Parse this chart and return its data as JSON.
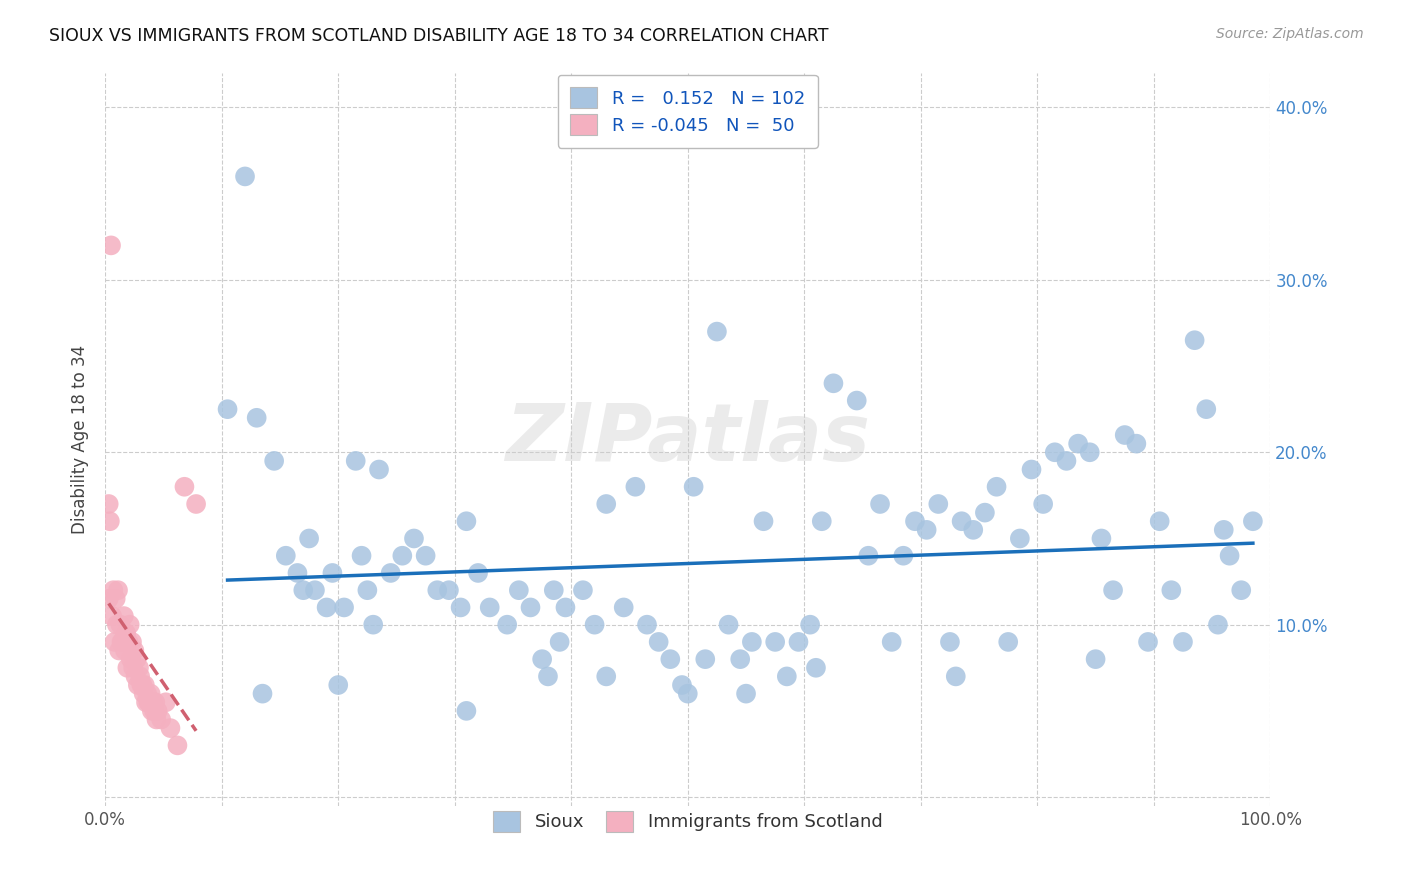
{
  "title": "SIOUX VS IMMIGRANTS FROM SCOTLAND DISABILITY AGE 18 TO 34 CORRELATION CHART",
  "source": "Source: ZipAtlas.com",
  "ylabel": "Disability Age 18 to 34",
  "xlim": [
    0.0,
    1.0
  ],
  "ylim": [
    -0.005,
    0.42
  ],
  "xtick_positions": [
    0.0,
    0.1,
    0.2,
    0.3,
    0.4,
    0.5,
    0.6,
    0.7,
    0.8,
    0.9,
    1.0
  ],
  "xticklabels": [
    "0.0%",
    "",
    "",
    "",
    "",
    "",
    "",
    "",
    "",
    "",
    "100.0%"
  ],
  "ytick_positions": [
    0.0,
    0.1,
    0.2,
    0.3,
    0.4
  ],
  "yticklabels": [
    "",
    "10.0%",
    "20.0%",
    "30.0%",
    "40.0%"
  ],
  "r_blue": 0.152,
  "n_blue": 102,
  "r_pink": -0.045,
  "n_pink": 50,
  "legend_blue": "Sioux",
  "legend_pink": "Immigrants from Scotland",
  "watermark": "ZIPatlas",
  "blue_color": "#a8c4e0",
  "blue_line_color": "#1a6fba",
  "pink_color": "#f4b0c0",
  "pink_line_color": "#d06070",
  "blue_scatter_x": [
    0.105,
    0.13,
    0.145,
    0.155,
    0.165,
    0.17,
    0.175,
    0.18,
    0.19,
    0.195,
    0.205,
    0.215,
    0.22,
    0.225,
    0.23,
    0.235,
    0.245,
    0.255,
    0.265,
    0.275,
    0.285,
    0.295,
    0.305,
    0.31,
    0.32,
    0.33,
    0.345,
    0.355,
    0.365,
    0.375,
    0.385,
    0.39,
    0.395,
    0.41,
    0.42,
    0.43,
    0.445,
    0.455,
    0.465,
    0.475,
    0.485,
    0.495,
    0.505,
    0.515,
    0.525,
    0.535,
    0.545,
    0.555,
    0.565,
    0.575,
    0.585,
    0.595,
    0.605,
    0.615,
    0.625,
    0.645,
    0.655,
    0.665,
    0.675,
    0.685,
    0.695,
    0.705,
    0.715,
    0.725,
    0.735,
    0.745,
    0.755,
    0.765,
    0.775,
    0.785,
    0.795,
    0.805,
    0.815,
    0.825,
    0.835,
    0.845,
    0.855,
    0.865,
    0.875,
    0.885,
    0.895,
    0.905,
    0.915,
    0.925,
    0.935,
    0.945,
    0.955,
    0.965,
    0.975,
    0.985,
    0.12,
    0.135,
    0.2,
    0.31,
    0.43,
    0.55,
    0.61,
    0.73,
    0.85,
    0.96,
    0.38,
    0.5
  ],
  "blue_scatter_y": [
    0.225,
    0.22,
    0.195,
    0.14,
    0.13,
    0.12,
    0.15,
    0.12,
    0.11,
    0.13,
    0.11,
    0.195,
    0.14,
    0.12,
    0.1,
    0.19,
    0.13,
    0.14,
    0.15,
    0.14,
    0.12,
    0.12,
    0.11,
    0.16,
    0.13,
    0.11,
    0.1,
    0.12,
    0.11,
    0.08,
    0.12,
    0.09,
    0.11,
    0.12,
    0.1,
    0.17,
    0.11,
    0.18,
    0.1,
    0.09,
    0.08,
    0.065,
    0.18,
    0.08,
    0.27,
    0.1,
    0.08,
    0.09,
    0.16,
    0.09,
    0.07,
    0.09,
    0.1,
    0.16,
    0.24,
    0.23,
    0.14,
    0.17,
    0.09,
    0.14,
    0.16,
    0.155,
    0.17,
    0.09,
    0.16,
    0.155,
    0.165,
    0.18,
    0.09,
    0.15,
    0.19,
    0.17,
    0.2,
    0.195,
    0.205,
    0.2,
    0.15,
    0.12,
    0.21,
    0.205,
    0.09,
    0.16,
    0.12,
    0.09,
    0.265,
    0.225,
    0.1,
    0.14,
    0.12,
    0.16,
    0.36,
    0.06,
    0.065,
    0.05,
    0.07,
    0.06,
    0.075,
    0.07,
    0.08,
    0.155,
    0.07,
    0.06
  ],
  "pink_scatter_x": [
    0.003,
    0.005,
    0.006,
    0.007,
    0.008,
    0.009,
    0.01,
    0.011,
    0.012,
    0.013,
    0.014,
    0.015,
    0.016,
    0.017,
    0.018,
    0.019,
    0.02,
    0.021,
    0.022,
    0.023,
    0.024,
    0.025,
    0.026,
    0.027,
    0.028,
    0.029,
    0.03,
    0.031,
    0.032,
    0.033,
    0.034,
    0.035,
    0.036,
    0.037,
    0.038,
    0.039,
    0.04,
    0.041,
    0.042,
    0.043,
    0.044,
    0.045,
    0.048,
    0.052,
    0.056,
    0.062,
    0.068,
    0.078,
    0.003,
    0.004
  ],
  "pink_scatter_y": [
    0.115,
    0.32,
    0.105,
    0.12,
    0.09,
    0.115,
    0.1,
    0.12,
    0.085,
    0.1,
    0.09,
    0.09,
    0.105,
    0.085,
    0.095,
    0.075,
    0.09,
    0.1,
    0.08,
    0.09,
    0.075,
    0.085,
    0.07,
    0.08,
    0.065,
    0.075,
    0.07,
    0.065,
    0.065,
    0.06,
    0.065,
    0.055,
    0.06,
    0.055,
    0.055,
    0.06,
    0.05,
    0.055,
    0.05,
    0.055,
    0.045,
    0.05,
    0.045,
    0.055,
    0.04,
    0.03,
    0.18,
    0.17,
    0.17,
    0.16
  ]
}
